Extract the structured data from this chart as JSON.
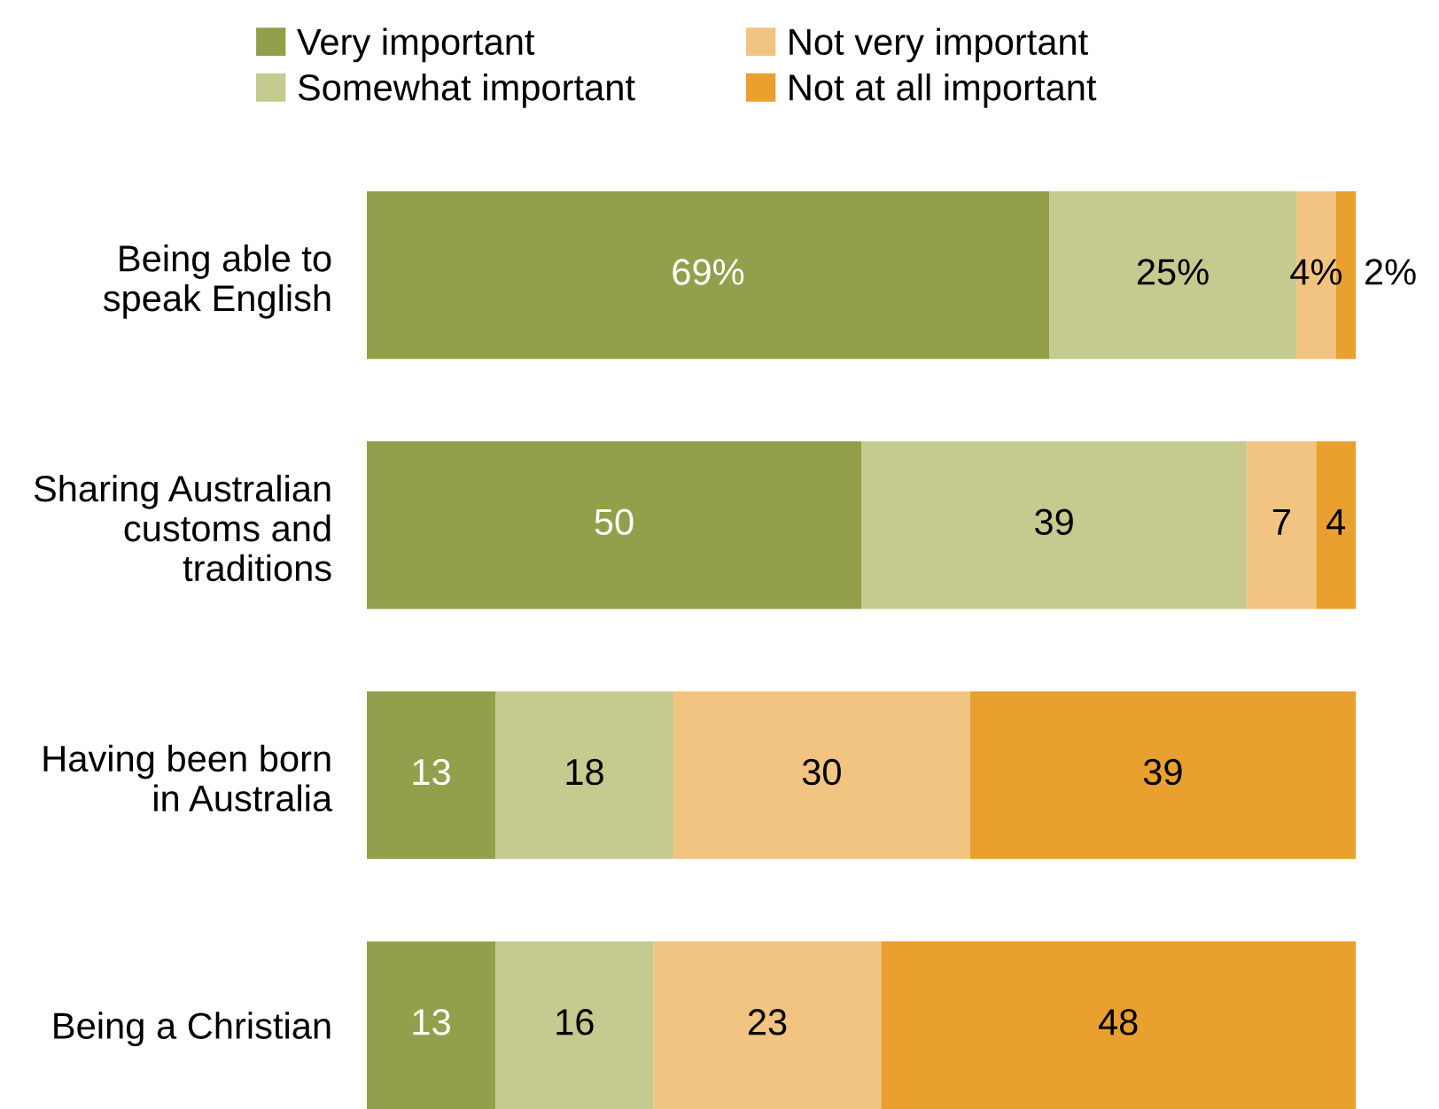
{
  "chart_data": {
    "type": "bar",
    "orientation": "horizontal",
    "stacked": true,
    "categories": [
      "Being able to\nspeak English",
      "Sharing Australian\ncustoms and\ntraditions",
      "Having been born\nin Australia",
      "Being a Christian"
    ],
    "xlim": [
      0,
      100
    ],
    "tick_labels": "y",
    "grid": false,
    "legend": "top",
    "series": [
      {
        "name": "Very important",
        "color": "#939f4b",
        "values": [
          69,
          50,
          13,
          13
        ],
        "value_labels": [
          "69%",
          "50",
          "13",
          "13"
        ]
      },
      {
        "name": "Somewhat important",
        "color": "#c5ca8f",
        "values": [
          25,
          39,
          18,
          16
        ],
        "value_labels": [
          "25%",
          "39",
          "18",
          "16"
        ]
      },
      {
        "name": "Not very important",
        "color": "#f2c482",
        "values": [
          4,
          7,
          30,
          23
        ],
        "value_labels": [
          "4%",
          "7",
          "30",
          "23"
        ]
      },
      {
        "name": "Not at all important",
        "color": "#e9a02f",
        "values": [
          2,
          4,
          39,
          48
        ],
        "value_labels": [
          "2%",
          "4",
          "39",
          "48"
        ]
      }
    ]
  }
}
